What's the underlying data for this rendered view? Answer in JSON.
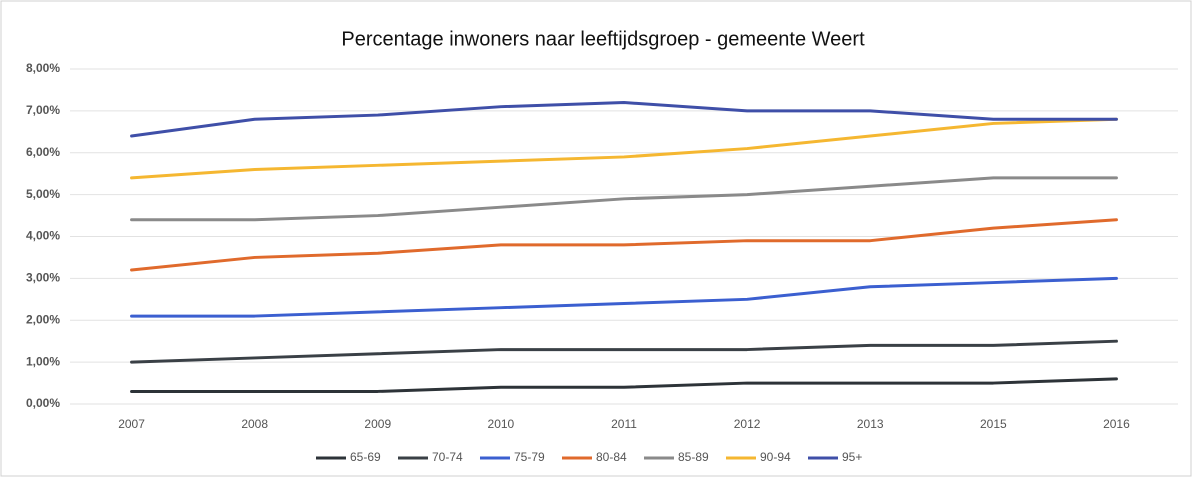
{
  "chart_data": {
    "type": "line",
    "title": "Percentage inwoners naar leeftijdsgroep - gemeente Weert",
    "categories": [
      "2007",
      "2008",
      "2009",
      "2010",
      "2011",
      "2012",
      "2013",
      "2015",
      "2016"
    ],
    "ylim": [
      0,
      8
    ],
    "yticks": [
      {
        "value": 0,
        "label": "0,00%"
      },
      {
        "value": 1,
        "label": "1,00%"
      },
      {
        "value": 2,
        "label": "2,00%"
      },
      {
        "value": 3,
        "label": "3,00%"
      },
      {
        "value": 4,
        "label": "4,00%"
      },
      {
        "value": 5,
        "label": "5,00%"
      },
      {
        "value": 6,
        "label": "6,00%"
      },
      {
        "value": 7,
        "label": "7,00%"
      },
      {
        "value": 8,
        "label": "8,00%"
      }
    ],
    "grid": true,
    "legend": "bottom",
    "series": [
      {
        "name": "65-69",
        "color": "#2d3338",
        "values": [
          0.3,
          0.3,
          0.3,
          0.4,
          0.4,
          0.5,
          0.5,
          0.5,
          0.6
        ]
      },
      {
        "name": "70-74",
        "color": "#3a4046",
        "values": [
          1.0,
          1.1,
          1.2,
          1.3,
          1.3,
          1.3,
          1.4,
          1.4,
          1.5
        ]
      },
      {
        "name": "75-79",
        "color": "#3b5fd0",
        "values": [
          2.1,
          2.1,
          2.2,
          2.3,
          2.4,
          2.5,
          2.8,
          2.9,
          3.0
        ]
      },
      {
        "name": "80-84",
        "color": "#e06a2c",
        "values": [
          3.2,
          3.5,
          3.6,
          3.8,
          3.8,
          3.9,
          3.9,
          4.2,
          4.4
        ]
      },
      {
        "name": "85-89",
        "color": "#8a8a8a",
        "values": [
          4.4,
          4.4,
          4.5,
          4.7,
          4.9,
          5.0,
          5.2,
          5.4,
          5.4
        ]
      },
      {
        "name": "90-94",
        "color": "#f5b731",
        "values": [
          5.4,
          5.6,
          5.7,
          5.8,
          5.9,
          6.1,
          6.4,
          6.7,
          6.8
        ]
      },
      {
        "name": "95+",
        "color": "#3f4fa8",
        "values": [
          6.4,
          6.8,
          6.9,
          7.1,
          7.2,
          7.0,
          7.0,
          6.8,
          6.8
        ]
      }
    ]
  }
}
